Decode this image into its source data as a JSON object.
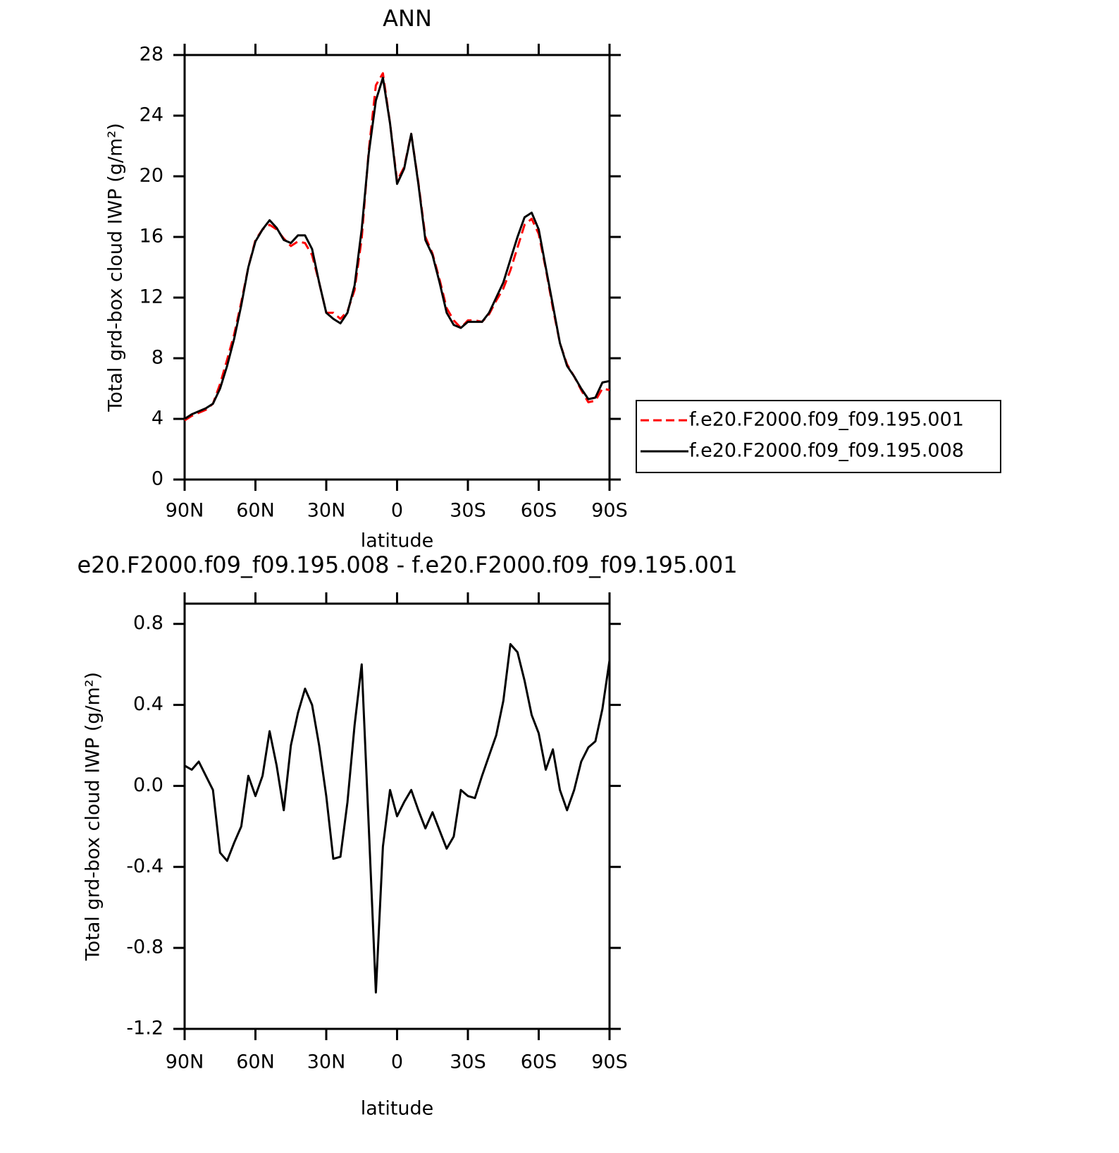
{
  "chart_data": [
    {
      "type": "line",
      "title": "ANN",
      "x_label": "latitude",
      "y_label": "Total grd-box cloud IWP (g/m²)",
      "x": [
        90,
        87,
        84,
        81,
        78,
        75,
        72,
        69,
        66,
        63,
        60,
        57,
        54,
        51,
        48,
        45,
        42,
        39,
        36,
        33,
        30,
        27,
        24,
        21,
        18,
        15,
        12,
        9,
        6,
        3,
        0,
        -3,
        -6,
        -9,
        -12,
        -15,
        -18,
        -21,
        -24,
        -27,
        -30,
        -33,
        -36,
        -39,
        -42,
        -45,
        -48,
        -51,
        -54,
        -57,
        -60,
        -63,
        -66,
        -69,
        -72,
        -75,
        -78,
        -81,
        -84,
        -87,
        -90
      ],
      "series": [
        {
          "name": "f.e20.F2000.f09_f09.195.001",
          "color": "#ff0000",
          "dashed": true,
          "values": [
            3.9,
            4.2,
            4.4,
            4.6,
            5.0,
            6.3,
            7.9,
            9.6,
            11.7,
            14.0,
            15.8,
            16.5,
            16.8,
            16.5,
            15.9,
            15.4,
            15.7,
            15.6,
            14.8,
            13.0,
            11.0,
            11.0,
            10.6,
            11.1,
            12.5,
            15.9,
            21.7,
            26.0,
            26.8,
            23.5,
            19.7,
            20.6,
            22.8,
            19.6,
            16.0,
            14.9,
            13.2,
            11.3,
            10.5,
            10.0,
            10.5,
            10.5,
            10.4,
            10.9,
            11.8,
            12.6,
            13.8,
            15.3,
            16.8,
            17.2,
            16.2,
            13.9,
            11.3,
            9.0,
            7.6,
            6.8,
            5.9,
            5.1,
            5.2,
            6.0,
            5.9
          ]
        },
        {
          "name": "f.e20.F2000.f09_f09.195.008",
          "color": "#000000",
          "dashed": false,
          "values": [
            4.0,
            4.3,
            4.5,
            4.7,
            5.0,
            6.0,
            7.5,
            9.3,
            11.5,
            14.0,
            15.7,
            16.5,
            17.1,
            16.6,
            15.8,
            15.6,
            16.1,
            16.1,
            15.2,
            13.0,
            11.0,
            10.6,
            10.3,
            11.0,
            12.8,
            16.5,
            21.5,
            25.0,
            26.5,
            23.5,
            19.5,
            20.5,
            22.8,
            19.5,
            15.8,
            14.8,
            13.0,
            11.0,
            10.2,
            10.0,
            10.4,
            10.4,
            10.4,
            11.0,
            12.0,
            13.0,
            14.5,
            16.0,
            17.3,
            17.6,
            16.5,
            14.0,
            11.5,
            9.0,
            7.5,
            6.8,
            6.0,
            5.3,
            5.4,
            6.4,
            6.5
          ]
        }
      ],
      "xlim": [
        90,
        -90
      ],
      "xticks": [
        {
          "value": 90,
          "label": "90N"
        },
        {
          "value": 60,
          "label": "60N"
        },
        {
          "value": 30,
          "label": "30N"
        },
        0,
        {
          "value": -30,
          "label": "30S"
        },
        {
          "value": -60,
          "label": "60S"
        },
        {
          "value": -90,
          "label": "90S"
        }
      ],
      "ylim": [
        0,
        28
      ],
      "yticks": [
        0,
        4,
        8,
        12,
        16,
        20,
        24,
        28
      ],
      "legend": "right"
    },
    {
      "type": "line",
      "title": "e20.F2000.f09_f09.195.008 - f.e20.F2000.f09_f09.195.001",
      "x_label": "latitude",
      "y_label": "Total grd-box cloud IWP (g/m²)",
      "x": [
        90,
        87,
        84,
        81,
        78,
        75,
        72,
        69,
        66,
        63,
        60,
        57,
        54,
        51,
        48,
        45,
        42,
        39,
        36,
        33,
        30,
        27,
        24,
        21,
        18,
        15,
        12,
        9,
        6,
        3,
        0,
        -3,
        -6,
        -9,
        -12,
        -15,
        -18,
        -21,
        -24,
        -27,
        -30,
        -33,
        -36,
        -39,
        -42,
        -45,
        -48,
        -51,
        -54,
        -57,
        -60,
        -63,
        -66,
        -69,
        -72,
        -75,
        -78,
        -81,
        -84,
        -87,
        -90
      ],
      "series": [
        {
          "color": "#000000",
          "dashed": false,
          "values": [
            0.1,
            0.08,
            0.12,
            0.05,
            -0.02,
            -0.33,
            -0.37,
            -0.28,
            -0.2,
            0.05,
            -0.05,
            0.05,
            0.27,
            0.1,
            -0.12,
            0.2,
            0.36,
            0.48,
            0.4,
            0.2,
            -0.05,
            -0.36,
            -0.35,
            -0.08,
            0.3,
            0.6,
            -0.2,
            -1.02,
            -0.3,
            -0.02,
            -0.15,
            -0.08,
            -0.02,
            -0.12,
            -0.21,
            -0.13,
            -0.22,
            -0.31,
            -0.25,
            -0.02,
            -0.05,
            -0.06,
            0.05,
            0.15,
            0.25,
            0.42,
            0.7,
            0.66,
            0.52,
            0.35,
            0.26,
            0.08,
            0.18,
            -0.02,
            -0.12,
            -0.02,
            0.12,
            0.19,
            0.22,
            0.38,
            0.62
          ]
        }
      ],
      "xlim": [
        90,
        -90
      ],
      "xticks": [
        {
          "value": 90,
          "label": "90N"
        },
        {
          "value": 60,
          "label": "60N"
        },
        {
          "value": 30,
          "label": "30N"
        },
        0,
        {
          "value": -30,
          "label": "30S"
        },
        {
          "value": -60,
          "label": "60S"
        },
        {
          "value": -90,
          "label": "90S"
        }
      ],
      "ylim": [
        -1.2,
        0.9
      ],
      "yticks": [
        -1.2,
        -0.8,
        -0.4,
        {
          "value": 0,
          "label": "0.0"
        },
        0.4,
        0.8
      ]
    }
  ]
}
